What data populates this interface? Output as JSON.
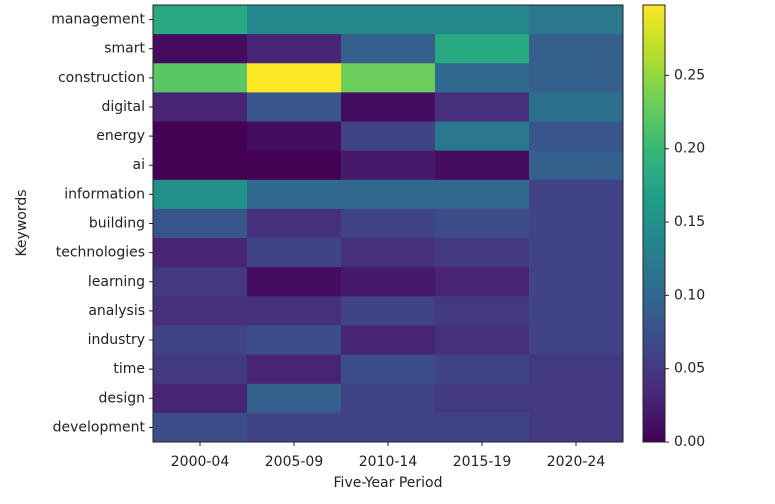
{
  "chart_data": {
    "type": "heatmap",
    "x_label": "Five-Year Period",
    "y_label": "Keywords",
    "x": [
      "2000-04",
      "2005-09",
      "2010-14",
      "2015-19",
      "2020-24"
    ],
    "y": [
      "management",
      "smart",
      "construction",
      "digital",
      "energy",
      "ai",
      "information",
      "building",
      "technologies",
      "learning",
      "analysis",
      "industry",
      "time",
      "design",
      "development"
    ],
    "values": [
      [
        0.18,
        0.14,
        0.14,
        0.14,
        0.12
      ],
      [
        0.01,
        0.03,
        0.09,
        0.18,
        0.09
      ],
      [
        0.22,
        0.298,
        0.23,
        0.1,
        0.09
      ],
      [
        0.03,
        0.08,
        0.01,
        0.04,
        0.11
      ],
      [
        0.0,
        0.01,
        0.06,
        0.12,
        0.08
      ],
      [
        0.0,
        0.0,
        0.02,
        0.01,
        0.09
      ],
      [
        0.15,
        0.1,
        0.1,
        0.1,
        0.06
      ],
      [
        0.08,
        0.04,
        0.06,
        0.07,
        0.06
      ],
      [
        0.03,
        0.06,
        0.04,
        0.05,
        0.06
      ],
      [
        0.05,
        0.01,
        0.02,
        0.03,
        0.06
      ],
      [
        0.04,
        0.04,
        0.06,
        0.05,
        0.06
      ],
      [
        0.06,
        0.07,
        0.03,
        0.04,
        0.06
      ],
      [
        0.05,
        0.03,
        0.07,
        0.06,
        0.05
      ],
      [
        0.03,
        0.09,
        0.06,
        0.05,
        0.05
      ],
      [
        0.07,
        0.06,
        0.06,
        0.06,
        0.05
      ]
    ],
    "colormap": "viridis",
    "clim": [
      0,
      0.298
    ],
    "cticks": [
      {
        "value": 0,
        "label": "0.00"
      },
      0.05,
      {
        "value": 0.1,
        "label": "0.10"
      },
      0.15,
      {
        "value": 0.2,
        "label": "0.20"
      },
      0.25
    ]
  }
}
